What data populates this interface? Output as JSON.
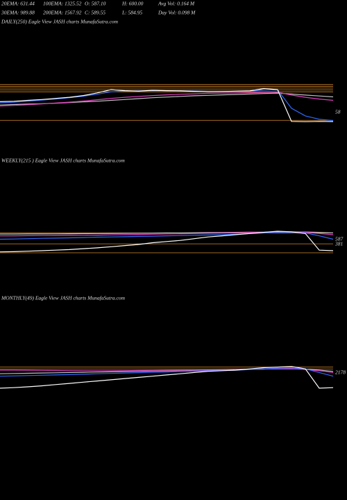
{
  "header": [
    "20EMA: 631.44",
    "100EMA: 1325.52",
    "O: 587.10",
    "H: 600.00",
    "Avg Vol: 0.164  M",
    "30EMA: 989.88",
    "200EMA: 1567.92",
    "C: 589.55",
    "L: 584.95",
    "Day Vol: 0.098  M"
  ],
  "chart_data": [
    {
      "type": "line",
      "title": "DAILY(250) Eagle  View  JASH charts MunafaSutra.com",
      "ylim": [
        500,
        2400
      ],
      "hlines": [
        2280,
        2200,
        2120,
        2040,
        1950,
        650
      ],
      "hline_color": "#d98a2b",
      "annotations": [
        "58"
      ],
      "series": [
        {
          "color": "#c0c0c0",
          "values": [
            1350,
            1370,
            1390,
            1410,
            1430,
            1460,
            1490,
            1520,
            1560,
            1600,
            1640,
            1680,
            1710,
            1740,
            1770,
            1790,
            1810,
            1830,
            1850,
            1870,
            1890,
            1850,
            1800,
            1760,
            1720
          ]
        },
        {
          "color": "#e040c0",
          "values": [
            1300,
            1330,
            1360,
            1400,
            1440,
            1480,
            1530,
            1590,
            1650,
            1700,
            1740,
            1780,
            1810,
            1840,
            1860,
            1880,
            1890,
            1900,
            1910,
            1920,
            1930,
            1800,
            1700,
            1620,
            1560
          ]
        },
        {
          "color": "#2f6bff",
          "values": [
            1450,
            1480,
            1520,
            1570,
            1620,
            1680,
            1750,
            1840,
            1950,
            1980,
            1990,
            2000,
            2000,
            1995,
            1985,
            1970,
            1965,
            1970,
            1980,
            2030,
            2040,
            1200,
            850,
            700,
            640
          ]
        },
        {
          "color": "#ffffff",
          "values": [
            1500,
            1520,
            1560,
            1600,
            1650,
            1700,
            1780,
            1900,
            2050,
            2000,
            1980,
            2020,
            2000,
            1990,
            1970,
            1950,
            1960,
            1980,
            1990,
            2100,
            2050,
            600,
            590,
            600,
            595
          ]
        }
      ]
    },
    {
      "type": "line",
      "title": "WEEKLY(215                    ) Eagle  View  JASH charts MunafaSutra.com",
      "ylim": [
        300,
        2600
      ],
      "hlines": [
        2150,
        1200,
        420
      ],
      "hline_color": "#d98a2b",
      "annotations": [
        "587",
        "381"
      ],
      "series": [
        {
          "color": "#c0c0c0",
          "values": [
            2050,
            2050,
            2060,
            2060,
            2070,
            2080,
            2090,
            2100,
            2110,
            2120,
            2130,
            2140,
            2150,
            2160,
            2170,
            2180,
            2190,
            2200,
            2210,
            2220,
            2230,
            2240,
            2230,
            2200,
            2150
          ]
        },
        {
          "color": "#e040c0",
          "values": [
            1900,
            1900,
            1910,
            1920,
            1930,
            1940,
            1950,
            1960,
            1980,
            2000,
            2020,
            2040,
            2060,
            2080,
            2100,
            2120,
            2140,
            2160,
            2180,
            2200,
            2220,
            2230,
            2200,
            2100,
            2000
          ]
        },
        {
          "color": "#2f6bff",
          "values": [
            1600,
            1620,
            1650,
            1680,
            1700,
            1720,
            1750,
            1780,
            1800,
            1820,
            1850,
            1870,
            1900,
            1920,
            1950,
            1970,
            2000,
            2050,
            2100,
            2150,
            2200,
            2200,
            2150,
            1900,
            1600
          ]
        },
        {
          "color": "#ffffff",
          "values": [
            500,
            520,
            560,
            600,
            650,
            700,
            780,
            850,
            950,
            1050,
            1150,
            1300,
            1400,
            1500,
            1650,
            1800,
            1900,
            2000,
            2100,
            2200,
            2300,
            2250,
            2100,
            650,
            600
          ]
        }
      ]
    },
    {
      "type": "line",
      "title": "MONTHLY(49) Eagle  View  JASH charts MunafaSutra.com",
      "ylim": [
        300,
        2600
      ],
      "hlines": [
        2450,
        2300
      ],
      "hline_color": "#d98a2b",
      "annotations": [
        "2178"
      ],
      "series": [
        {
          "color": "#c0c0c0",
          "values": [
            1900,
            1920,
            1940,
            1960,
            1980,
            2000,
            2020,
            2040,
            2060,
            2080,
            2100,
            2120,
            2140,
            2160,
            2180,
            2200,
            2220,
            2240,
            2260,
            2280,
            2300,
            2310,
            2280,
            2200,
            2100
          ]
        },
        {
          "color": "#e040c0",
          "values": [
            2200,
            2200,
            2190,
            2180,
            2170,
            2160,
            2150,
            2150,
            2150,
            2160,
            2170,
            2180,
            2190,
            2200,
            2210,
            2220,
            2230,
            2250,
            2270,
            2290,
            2300,
            2320,
            2250,
            2150,
            2000
          ]
        },
        {
          "color": "#2f6bff",
          "values": [
            1700,
            1720,
            1750,
            1780,
            1800,
            1830,
            1860,
            1900,
            1930,
            1960,
            1990,
            2020,
            2050,
            2080,
            2110,
            2140,
            2170,
            2200,
            2250,
            2300,
            2350,
            2380,
            2300,
            2000,
            1700
          ]
        },
        {
          "color": "#ffffff",
          "values": [
            700,
            750,
            820,
            900,
            1000,
            1100,
            1200,
            1300,
            1400,
            1500,
            1600,
            1700,
            1800,
            1900,
            2000,
            2100,
            2150,
            2200,
            2300,
            2400,
            2450,
            2500,
            2300,
            700,
            750
          ]
        }
      ]
    }
  ]
}
